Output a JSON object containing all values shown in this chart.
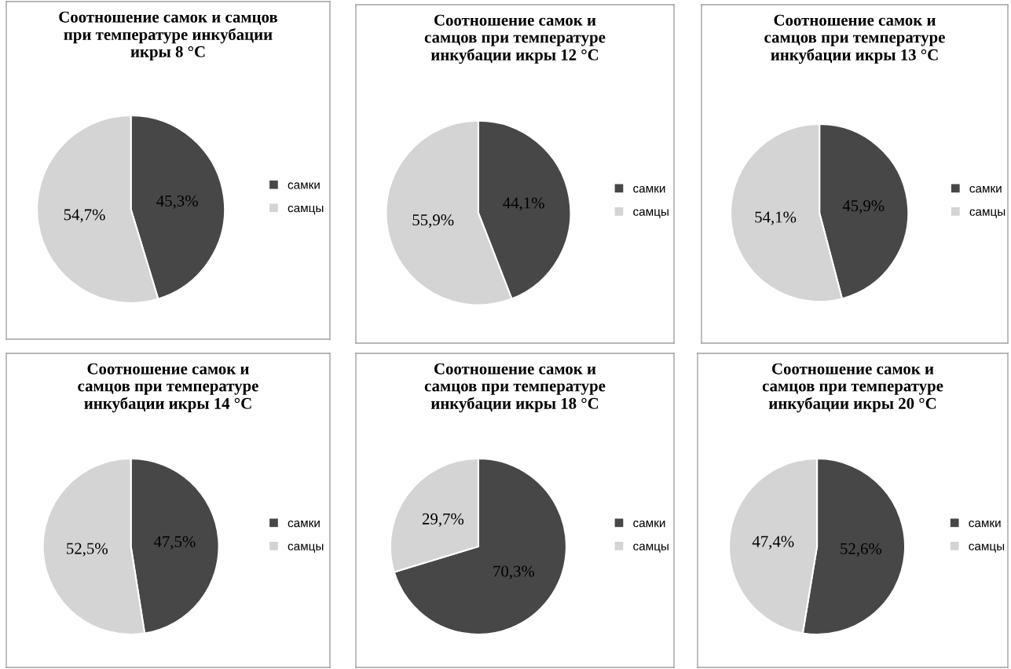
{
  "chart_data": [
    {
      "type": "pie",
      "title": "Соотношение самок и самцов\nпри температуре инкубации\nикры 8 °C",
      "categories": [
        "самки",
        "самцы"
      ],
      "values": [
        45.3,
        54.7
      ],
      "colors": [
        "#474747",
        "#d4d4d4"
      ],
      "value_labels": [
        "45,3%",
        "54,7%"
      ],
      "legend": "right"
    },
    {
      "type": "pie",
      "title": "Соотношение самок и\nсамцов при температуре\nинкубации икры 12 °C",
      "categories": [
        "самки",
        "самцы"
      ],
      "values": [
        44.1,
        55.9
      ],
      "colors": [
        "#474747",
        "#d4d4d4"
      ],
      "value_labels": [
        "44,1%",
        "55,9%"
      ],
      "legend": "right"
    },
    {
      "type": "pie",
      "title": "Соотношение самок и\nсамцов при температуре\nинкубации икры 13 °C",
      "categories": [
        "самки",
        "самцы"
      ],
      "values": [
        45.9,
        54.1
      ],
      "colors": [
        "#474747",
        "#d4d4d4"
      ],
      "value_labels": [
        "45,9%",
        "54,1%"
      ],
      "legend": "right"
    },
    {
      "type": "pie",
      "title": "Соотношение самок и\nсамцов при температуре\nинкубации икры 14 °C",
      "categories": [
        "самки",
        "самцы"
      ],
      "values": [
        47.5,
        52.5
      ],
      "colors": [
        "#474747",
        "#d4d4d4"
      ],
      "value_labels": [
        "47,5%",
        "52,5%"
      ],
      "legend": "right"
    },
    {
      "type": "pie",
      "title": "Соотношение самок и\nсамцов при температуре\nинкубации икры 18 °C",
      "categories": [
        "самки",
        "самцы"
      ],
      "values": [
        70.3,
        29.7
      ],
      "colors": [
        "#474747",
        "#d4d4d4"
      ],
      "value_labels": [
        "70,3%",
        "29,7%"
      ],
      "legend": "right"
    },
    {
      "type": "pie",
      "title": "Соотношение самок и\nсамцов при температуре\nинкубации икры 20 °C",
      "categories": [
        "самки",
        "самцы"
      ],
      "values": [
        52.6,
        47.4
      ],
      "colors": [
        "#474747",
        "#d4d4d4"
      ],
      "value_labels": [
        "52,6%",
        "47,4%"
      ],
      "legend": "right"
    }
  ]
}
